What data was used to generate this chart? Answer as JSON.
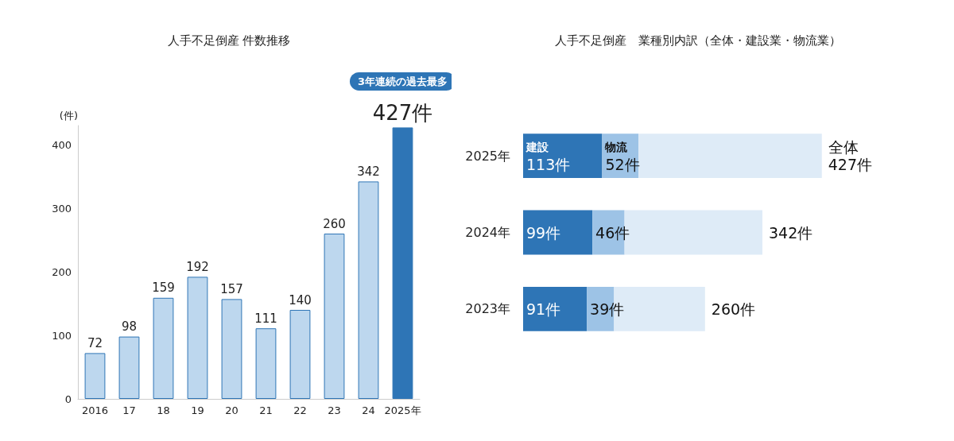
{
  "chart_data": [
    {
      "type": "bar",
      "title": "人手不足倒産 件数推移",
      "ylabel": "(件)",
      "categories": [
        "2016",
        "17",
        "18",
        "19",
        "20",
        "21",
        "22",
        "23",
        "24",
        "2025年"
      ],
      "values": [
        72,
        98,
        159,
        192,
        157,
        111,
        140,
        260,
        342,
        427
      ],
      "colors": [
        "#bdd7ee",
        "#bdd7ee",
        "#bdd7ee",
        "#bdd7ee",
        "#bdd7ee",
        "#bdd7ee",
        "#bdd7ee",
        "#bdd7ee",
        "#bdd7ee",
        "#2e75b6"
      ],
      "value_labels": [
        "72",
        "98",
        "159",
        "192",
        "157",
        "111",
        "140",
        "260",
        "342",
        "427件"
      ],
      "ylim": [
        0,
        430
      ],
      "yticks": [
        0,
        100,
        200,
        300,
        400
      ],
      "annotations": [
        "3年連続の過去最多"
      ]
    },
    {
      "type": "bar",
      "title": "人手不足倒産　業種別内訳（全体・建設業・物流業）",
      "orientation": "horizontal",
      "stacked": true,
      "tick_labels": "y",
      "categories": [
        "2025年",
        "2024年",
        "2023年"
      ],
      "series": [
        {
          "name": "建設",
          "color": "#2e75b6",
          "values": [
            113,
            99,
            91
          ],
          "value_labels": [
            "113件",
            "99件",
            "91件"
          ]
        },
        {
          "name": "物流",
          "color": "#9dc3e6",
          "values": [
            52,
            46,
            39
          ],
          "value_labels": [
            "52件",
            "46件",
            "39件"
          ]
        },
        {
          "color": "#deebf7",
          "values": [
            262,
            197,
            130
          ]
        }
      ],
      "totals": [
        "全体\n427件",
        "342件",
        "260件"
      ]
    }
  ]
}
